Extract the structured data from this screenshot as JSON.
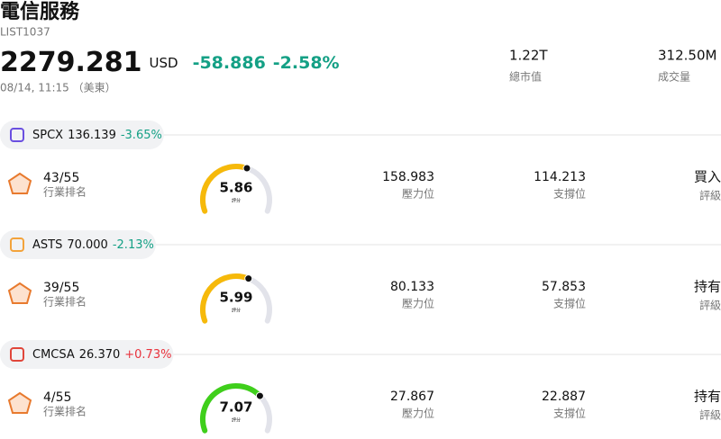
{
  "header": {
    "title": "電信服務",
    "code": "LIST1037",
    "price": "2279.281",
    "currency": "USD",
    "change": "-58.886",
    "change_pct": "-2.58%",
    "change_color": "#14a085",
    "time": "08/14, 11:15 （美東）",
    "stats": [
      {
        "value": "1.22T",
        "label": "總市值"
      },
      {
        "value": "312.50M",
        "label": "成交量"
      }
    ]
  },
  "stocks": [
    {
      "ticker": "SPCX",
      "price": "136.139",
      "change": "-3.65%",
      "change_color": "#14a085",
      "logo_color": "#6a4fe0",
      "rank": "43/55",
      "rank_label": "行業排名",
      "score": 5.86,
      "score_label": "評分",
      "gauge_color": "#f6b90a",
      "resistance": "158.983",
      "resistance_label": "壓力位",
      "support": "114.213",
      "support_label": "支撐位",
      "rating": "買入",
      "rating_color": "#1ab8a8",
      "rating_label": "評級"
    },
    {
      "ticker": "ASTS",
      "price": "70.000",
      "change": "-2.13%",
      "change_color": "#14a085",
      "logo_color": "#f3a33b",
      "rank": "39/55",
      "rank_label": "行業排名",
      "score": 5.99,
      "score_label": "評分",
      "gauge_color": "#f6b90a",
      "resistance": "80.133",
      "resistance_label": "壓力位",
      "support": "57.853",
      "support_label": "支撐位",
      "rating": "持有",
      "rating_color": "#111111",
      "rating_label": "評級"
    },
    {
      "ticker": "CMCSA",
      "price": "26.370",
      "change": "+0.73%",
      "change_color": "#e8323c",
      "logo_color": "#e0463a",
      "rank": "4/55",
      "rank_label": "行業排名",
      "score": 7.07,
      "score_label": "評分",
      "gauge_color": "#3fcf1b",
      "resistance": "27.867",
      "resistance_label": "壓力位",
      "support": "22.887",
      "support_label": "支撐位",
      "rating": "持有",
      "rating_color": "#111111",
      "rating_label": "評級"
    }
  ]
}
